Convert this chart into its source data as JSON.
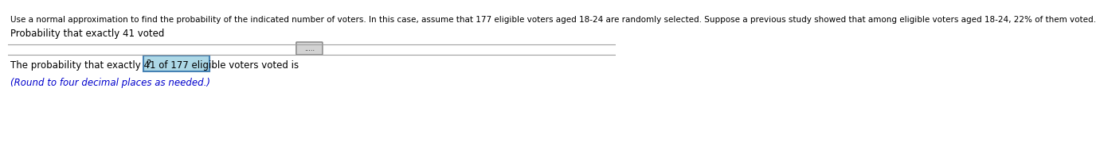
{
  "line1": "Use a normal approximation to find the probability of the indicated number of voters. In this case, assume that 177 eligible voters aged 18-24 are randomly selected. Suppose a previous study showed that among eligible voters aged 18-24, 22% of them voted.",
  "line2": "Probability that exactly 41 voted",
  "line3": "The probability that exactly 41 of 177 eligible voters voted is",
  "line4": "(Round to four decimal places as needed.)",
  "input_placeholder": "?",
  "dots_label": ".....",
  "background_color": "#ffffff",
  "text_color": "#000000",
  "blue_text_color": "#0000cc",
  "input_box_color": "#add8e6",
  "input_border_color": "#4682b4",
  "separator_color": "#a0a0a0",
  "dots_box_color": "#d3d3d3",
  "dots_box_border": "#808080",
  "font_size_main": 7.5,
  "font_size_sub": 8.5,
  "font_size_blue": 8.5
}
